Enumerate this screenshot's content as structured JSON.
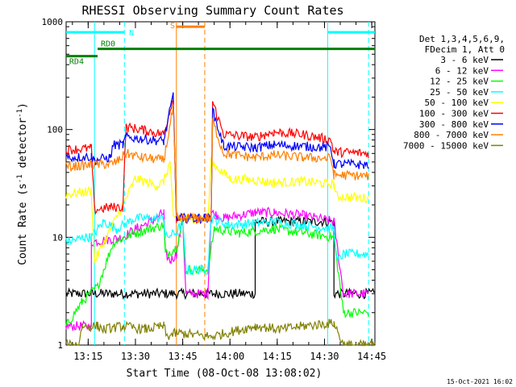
{
  "chart_data": {
    "type": "line",
    "title": "RHESSI Observing Summary Count Rates",
    "xlabel": "Start Time (08-Oct-08 13:08:02)",
    "ylabel": "Count Rate (s⁻¹ detector⁻¹)",
    "ylabel_main": "Count Rate (s",
    "ylabel_sup1": "-1",
    "ylabel_mid": " detector",
    "ylabel_sup2": "-1",
    "ylabel_end": ")",
    "yscale": "log",
    "ylim": [
      1,
      1000
    ],
    "xlim_minutes": [
      0,
      98
    ],
    "yticks": [
      {
        "v": 1,
        "label": "1"
      },
      {
        "v": 10,
        "label": "10"
      },
      {
        "v": 100,
        "label": "100"
      },
      {
        "v": 1000,
        "label": "1000"
      }
    ],
    "xticks": [
      {
        "t": "13:15"
      },
      {
        "t": "13:30"
      },
      {
        "t": "13:45"
      },
      {
        "t": "14:00"
      },
      {
        "t": "14:15"
      },
      {
        "t": "14:30"
      },
      {
        "t": "14:45"
      }
    ],
    "legend": {
      "header": [
        "Det 1,3,4,5,6,9,",
        "FDecim 1, Att 0"
      ],
      "placement": "right"
    },
    "series": [
      {
        "name": "3 - 6 keV",
        "color": "#000000",
        "values": [
          [
            0,
            3
          ],
          [
            60,
            3
          ],
          [
            60,
            14
          ],
          [
            85,
            14
          ],
          [
            85,
            3
          ],
          [
            98,
            3
          ]
        ]
      },
      {
        "name": "6 - 12 keV",
        "color": "#ff00ff",
        "values": [
          [
            0,
            1.5
          ],
          [
            8,
            1.5
          ],
          [
            8,
            9
          ],
          [
            18,
            10
          ],
          [
            22,
            12
          ],
          [
            27,
            14
          ],
          [
            31,
            17
          ],
          [
            31.5,
            7
          ],
          [
            33,
            6
          ],
          [
            35,
            7
          ],
          [
            37,
            15
          ],
          [
            38,
            3
          ],
          [
            45,
            3
          ],
          [
            46,
            17
          ],
          [
            50,
            15
          ],
          [
            60,
            17
          ],
          [
            66,
            17
          ],
          [
            75,
            16
          ],
          [
            85,
            14
          ],
          [
            88,
            3
          ],
          [
            96,
            3
          ]
        ]
      },
      {
        "name": "12 - 25 keV",
        "color": "#00ff00",
        "values": [
          [
            0,
            1.5
          ],
          [
            5,
            2.5
          ],
          [
            10,
            3.5
          ],
          [
            15,
            9
          ],
          [
            22,
            11
          ],
          [
            31,
            13
          ],
          [
            31.5,
            7
          ],
          [
            35,
            8
          ],
          [
            37,
            14
          ],
          [
            38,
            5
          ],
          [
            45,
            5
          ],
          [
            47,
            12
          ],
          [
            55,
            11
          ],
          [
            66,
            12
          ],
          [
            75,
            11
          ],
          [
            85,
            10
          ],
          [
            88,
            2
          ],
          [
            96,
            2
          ]
        ]
      },
      {
        "name": "25 - 50 keV",
        "color": "#00ffff",
        "values": [
          [
            0,
            9
          ],
          [
            6,
            10
          ],
          [
            8,
            10
          ],
          [
            12,
            14
          ],
          [
            16,
            12
          ],
          [
            22,
            15
          ],
          [
            31,
            15
          ],
          [
            31.5,
            10
          ],
          [
            35,
            11
          ],
          [
            37,
            14
          ],
          [
            38,
            5
          ],
          [
            45,
            5
          ],
          [
            46,
            15
          ],
          [
            52,
            13
          ],
          [
            66,
            14
          ],
          [
            75,
            13
          ],
          [
            85,
            12
          ],
          [
            86,
            6
          ],
          [
            88,
            7
          ],
          [
            96,
            7
          ]
        ]
      },
      {
        "name": "50 - 100 keV",
        "color": "#ffff00",
        "values": [
          [
            0,
            25
          ],
          [
            8,
            27
          ],
          [
            9,
            6
          ],
          [
            12,
            9
          ],
          [
            18,
            20
          ],
          [
            22,
            35
          ],
          [
            29,
            30
          ],
          [
            31,
            33
          ],
          [
            33,
            50
          ],
          [
            34,
            15
          ],
          [
            45,
            15
          ],
          [
            46,
            50
          ],
          [
            52,
            35
          ],
          [
            60,
            34
          ],
          [
            66,
            32
          ],
          [
            75,
            33
          ],
          [
            85,
            31
          ],
          [
            86,
            24
          ],
          [
            96,
            23
          ]
        ]
      },
      {
        "name": "100 - 300 keV",
        "color": "#ff0000",
        "values": [
          [
            0,
            65
          ],
          [
            8,
            67
          ],
          [
            9,
            18
          ],
          [
            14,
            19
          ],
          [
            18,
            19
          ],
          [
            19,
            105
          ],
          [
            24,
            100
          ],
          [
            31,
            90
          ],
          [
            34,
            200
          ],
          [
            35,
            15
          ],
          [
            46,
            15
          ],
          [
            46.5,
            180
          ],
          [
            50,
            90
          ],
          [
            60,
            85
          ],
          [
            66,
            95
          ],
          [
            75,
            90
          ],
          [
            84,
            80
          ],
          [
            85,
            62
          ],
          [
            96,
            60
          ]
        ]
      },
      {
        "name": "300 - 800 keV",
        "color": "#0000ff",
        "values": [
          [
            0,
            55
          ],
          [
            8,
            56
          ],
          [
            9,
            52
          ],
          [
            14,
            55
          ],
          [
            15,
            72
          ],
          [
            18,
            72
          ],
          [
            19,
            85
          ],
          [
            24,
            82
          ],
          [
            31,
            78
          ],
          [
            34,
            210
          ],
          [
            35,
            15
          ],
          [
            46,
            15
          ],
          [
            46.5,
            150
          ],
          [
            50,
            70
          ],
          [
            60,
            68
          ],
          [
            66,
            72
          ],
          [
            75,
            70
          ],
          [
            84,
            68
          ],
          [
            85,
            48
          ],
          [
            96,
            47
          ]
        ]
      },
      {
        "name": "800 - 7000 keV",
        "color": "#ff8000",
        "values": [
          [
            0,
            45
          ],
          [
            8,
            47
          ],
          [
            14,
            48
          ],
          [
            16,
            50
          ],
          [
            19,
            60
          ],
          [
            24,
            55
          ],
          [
            31,
            52
          ],
          [
            34,
            160
          ],
          [
            35,
            15
          ],
          [
            46,
            15
          ],
          [
            46.5,
            120
          ],
          [
            50,
            60
          ],
          [
            60,
            55
          ],
          [
            66,
            58
          ],
          [
            75,
            55
          ],
          [
            84,
            54
          ],
          [
            85,
            38
          ],
          [
            96,
            37
          ]
        ]
      },
      {
        "name": "7000 - 15000 keV",
        "color": "#808000",
        "values": [
          [
            0,
            1
          ],
          [
            4,
            1
          ],
          [
            5,
            1.5
          ],
          [
            10,
            1.5
          ],
          [
            12,
            1.4
          ],
          [
            18,
            1.5
          ],
          [
            25,
            1.4
          ],
          [
            31,
            1.5
          ],
          [
            32,
            1.2
          ],
          [
            35,
            1.3
          ],
          [
            46,
            1.2
          ],
          [
            60,
            1.5
          ],
          [
            68,
            1.4
          ],
          [
            75,
            1.5
          ],
          [
            85,
            1.6
          ],
          [
            88,
            1
          ],
          [
            98,
            1
          ]
        ]
      }
    ],
    "annotations": [
      {
        "label": "N",
        "color": "#00ffff"
      },
      {
        "label": "S",
        "color": "#ff8000"
      },
      {
        "label": "RD0",
        "color": "#008000"
      },
      {
        "label": "RD4",
        "color": "#008000"
      }
    ],
    "spans": [
      {
        "kind": "night",
        "color": "#00ffff",
        "from": 0,
        "to": 18.5,
        "level": 800,
        "text_ref": "N"
      },
      {
        "kind": "night",
        "color": "#00ffff",
        "from": 83,
        "to": 98,
        "level": 800
      },
      {
        "kind": "saa",
        "color": "#ff8000",
        "from": 35,
        "to": 44,
        "level": 900,
        "text_ref": "S"
      },
      {
        "kind": "rd0",
        "color": "#008000",
        "from": 10,
        "to": 98,
        "level": 560,
        "text_ref": "RD0"
      },
      {
        "kind": "rd4",
        "color": "#008000",
        "from": 0,
        "to": 10,
        "level": 480,
        "text_ref": "RD4"
      }
    ],
    "vlines": [
      {
        "x": 18.5,
        "color": "#00ffff",
        "style": "dash"
      },
      {
        "x": 9,
        "color": "#00ffff",
        "style": "solid"
      },
      {
        "x": 83,
        "color": "#00ffff",
        "style": "solid"
      },
      {
        "x": 96,
        "color": "#00ffff",
        "style": "dash"
      },
      {
        "x": 35,
        "color": "#ff8000",
        "style": "solid"
      },
      {
        "x": 44,
        "color": "#ff8000",
        "style": "dash"
      }
    ]
  },
  "footer": {
    "date": "15-Oct-2021 16:02"
  }
}
